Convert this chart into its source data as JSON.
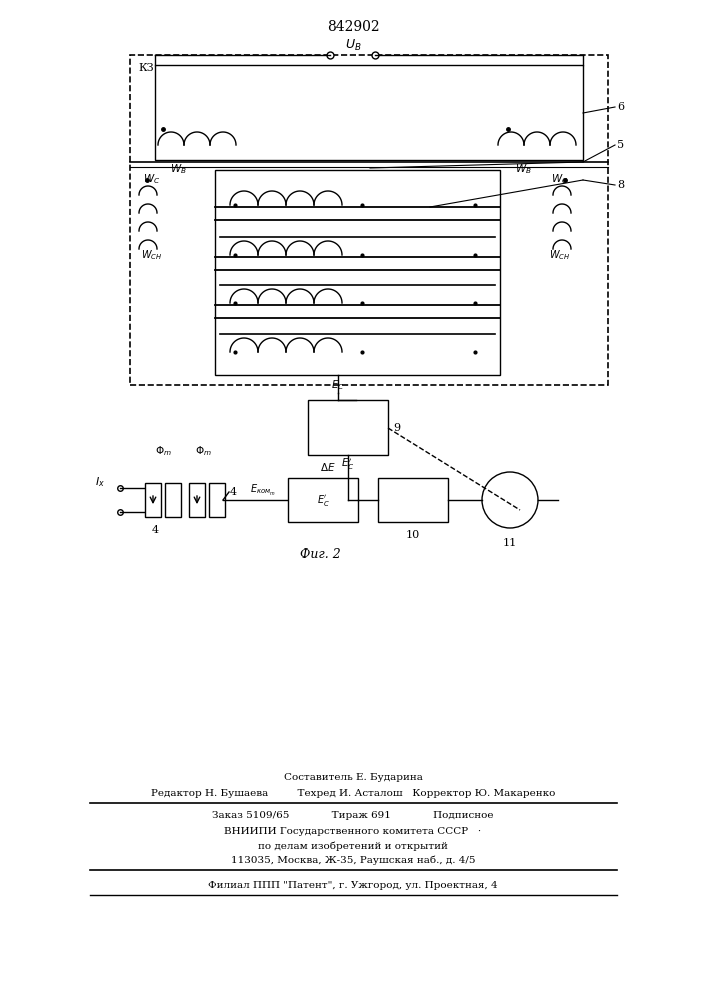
{
  "patent_number": "842902",
  "fig_label": "Фиг. 2",
  "background_color": "#ffffff",
  "line_color": "#000000",
  "footer_lines": [
    "Составитель Е. Бударина",
    "Редактор Н. Бушаева         Техред И. Асталош   Корректор Ю. Макаренко",
    "Заказ 5109/65             Тираж 691             Подписное",
    "ВНИИПИ Государственного комитета СССР   ·",
    "по делам изобретений и открытий",
    "113035, Москва, Ж-35, Раушская наб., д. 4/5",
    "Филиал ППП \"Патент\", г. Ужгород, ул. Проектная, 4"
  ]
}
